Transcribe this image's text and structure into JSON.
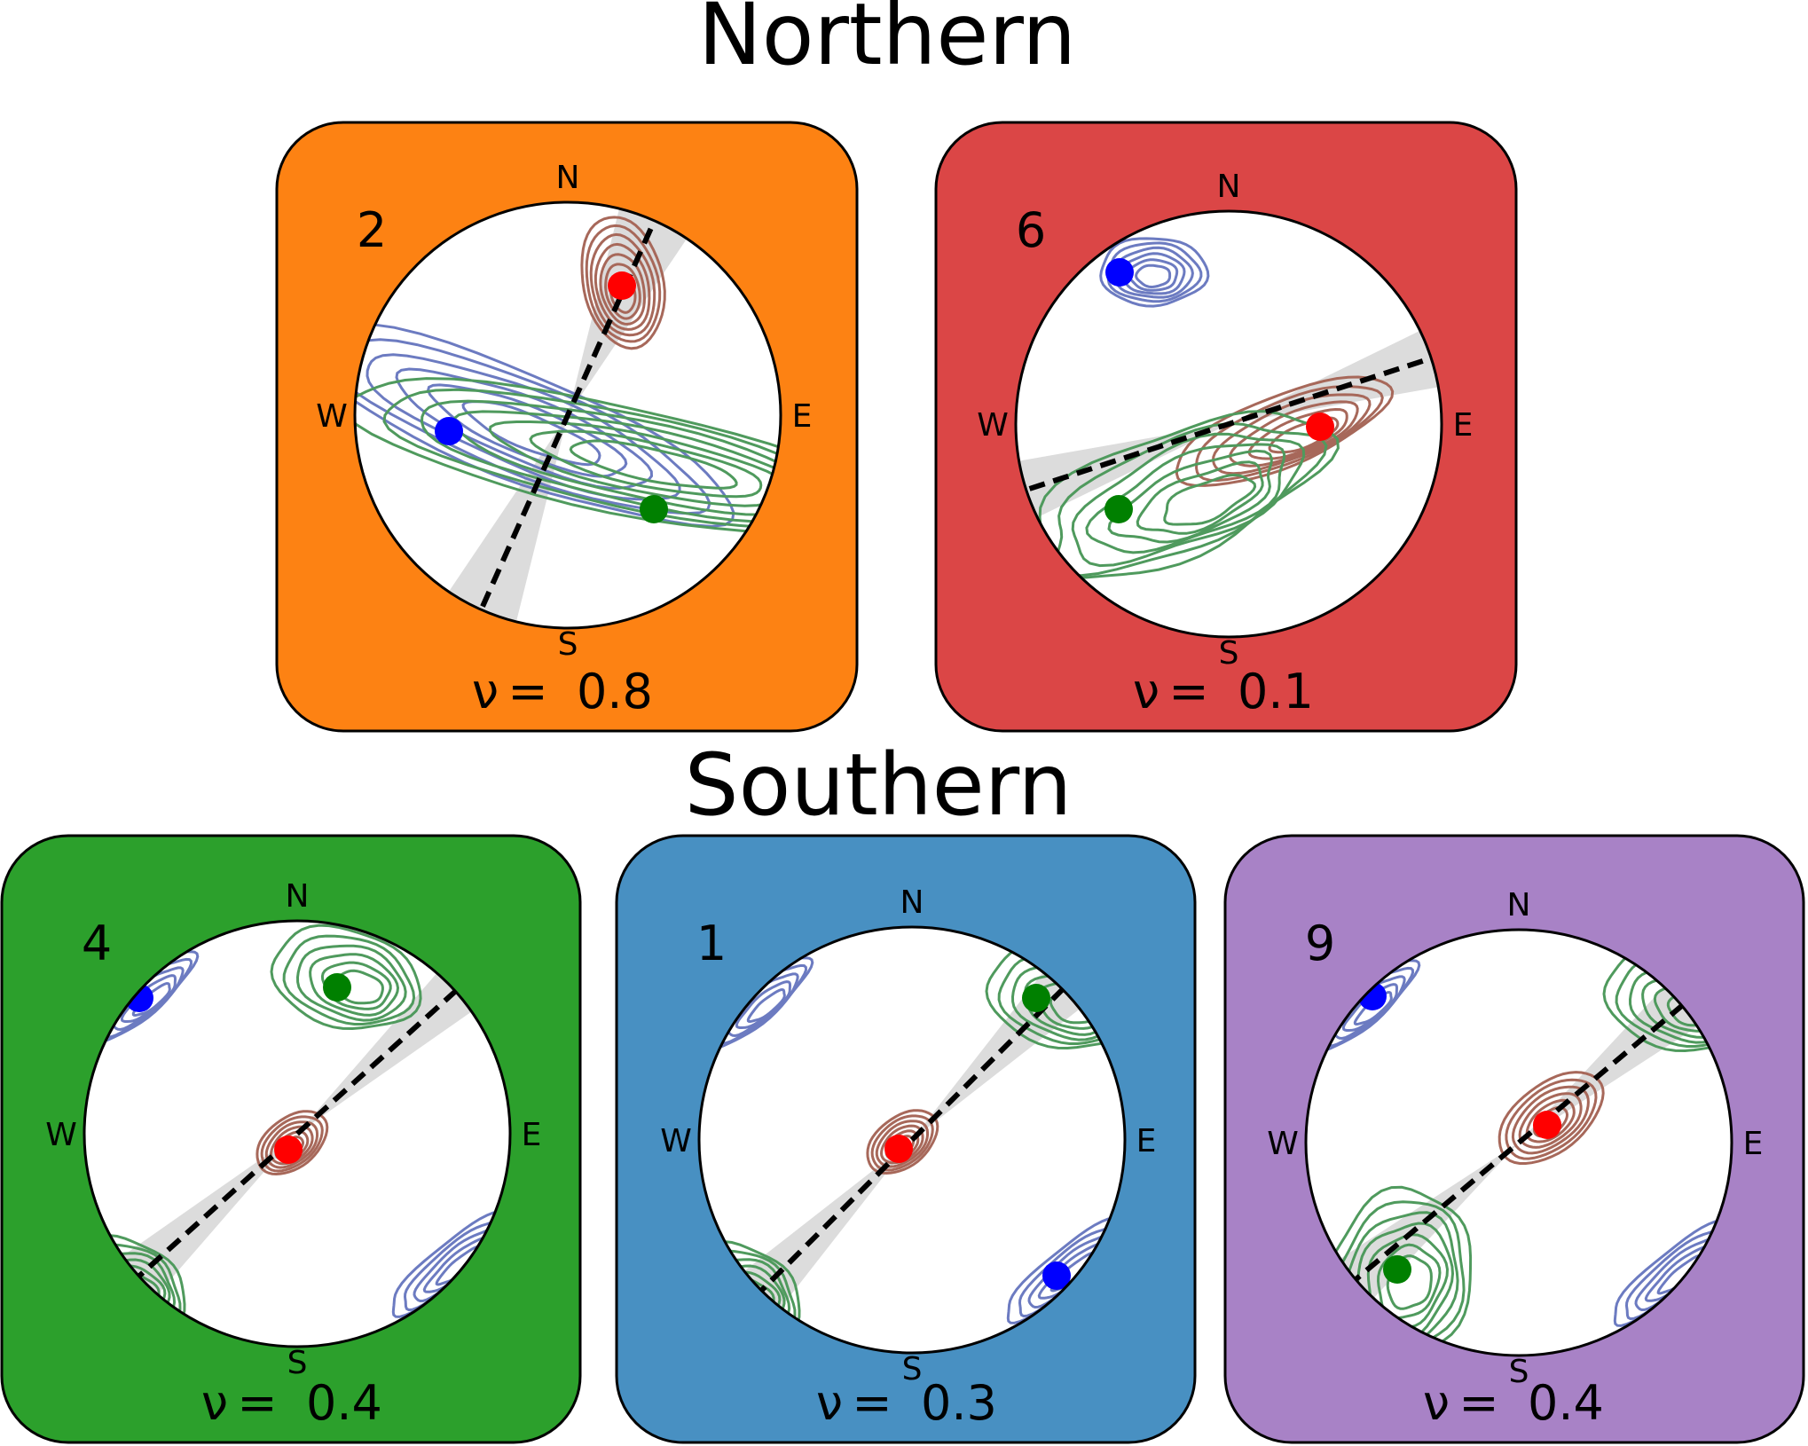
{
  "titles": {
    "northern": "Northern",
    "southern": "Southern"
  },
  "compass": {
    "n": "N",
    "s": "S",
    "e": "E",
    "w": "W"
  },
  "nu_symbol": "ν",
  "nu_equals": "=",
  "colors": {
    "orange": "#fd8213",
    "red": "#db4646",
    "green": "#2ca02c",
    "blue": "#4890c2",
    "purple": "#a882c6",
    "contour_blue": "#6c7bc1",
    "contour_green": "#4f9a5d",
    "contour_brown": "#a7685a",
    "wedge": "#dcdcdc",
    "dot_red": "#ff0000",
    "dot_blue": "#0000ff",
    "dot_green": "#008000"
  },
  "panels": [
    {
      "id": "north-2",
      "number": "2",
      "nu": "0.8",
      "background": "orange"
    },
    {
      "id": "north-6",
      "number": "6",
      "nu": "0.1",
      "background": "red"
    },
    {
      "id": "south-4",
      "number": "4",
      "nu": "0.4",
      "background": "green"
    },
    {
      "id": "south-1",
      "number": "1",
      "nu": "0.3",
      "background": "blue"
    },
    {
      "id": "south-9",
      "number": "9",
      "nu": "0.4",
      "background": "purple"
    }
  ]
}
